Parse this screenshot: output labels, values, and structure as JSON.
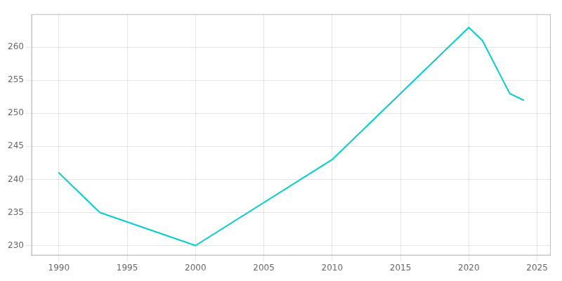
{
  "chart_data": {
    "type": "line",
    "x": [
      1990,
      1993,
      2000,
      2010,
      2020,
      2021,
      2023,
      2024
    ],
    "values": [
      241,
      235,
      230,
      243,
      263,
      261,
      253,
      252
    ],
    "color": "#00CED1",
    "xlim": [
      1988,
      2026
    ],
    "ylim": [
      228.5,
      265
    ],
    "xticks": [
      1990,
      1995,
      2000,
      2005,
      2010,
      2015,
      2020,
      2025
    ],
    "yticks": [
      230,
      235,
      240,
      245,
      250,
      255,
      260
    ],
    "grid": true
  }
}
